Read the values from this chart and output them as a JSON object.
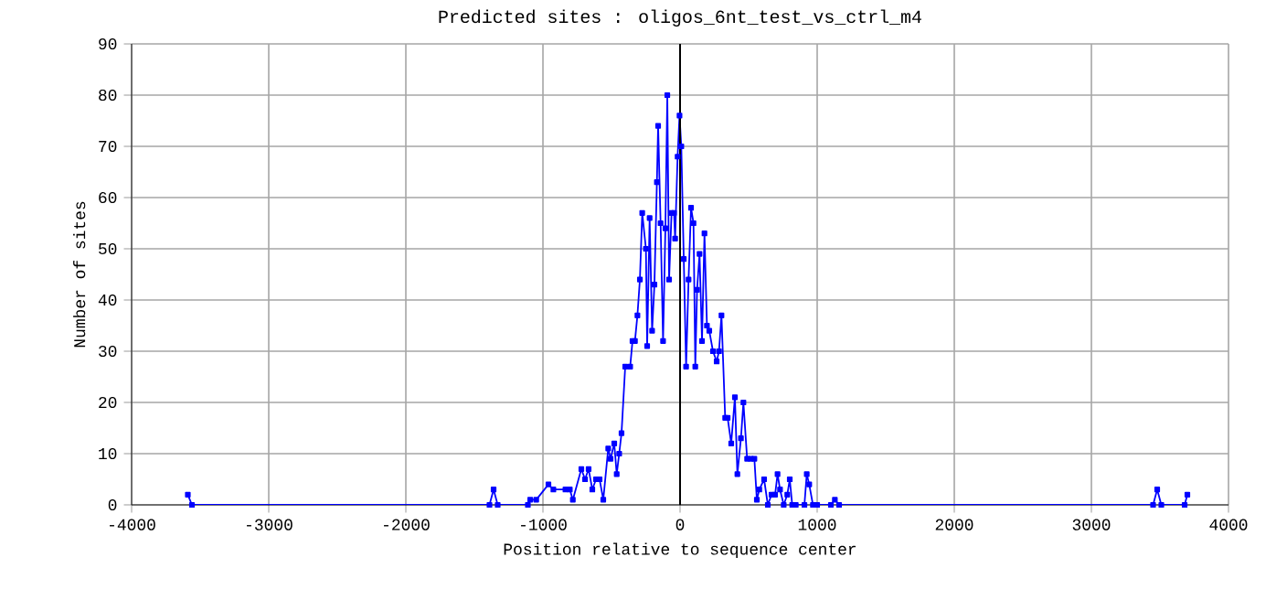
{
  "chart_data": {
    "type": "line",
    "title": "Predicted sites : oligos_6nt_test_vs_ctrl_m4",
    "xlabel": "Position relative to sequence center",
    "ylabel": "Number of sites",
    "x": [
      -3590,
      -3560,
      -1390,
      -1360,
      -1330,
      -1110,
      -1093,
      -1049,
      -960,
      -924,
      -836,
      -804,
      -782,
      -720,
      -693,
      -667,
      -640,
      -613,
      -587,
      -560,
      -524,
      -507,
      -480,
      -462,
      -444,
      -427,
      -400,
      -364,
      -347,
      -329,
      -311,
      -293,
      -276,
      -249,
      -240,
      -222,
      -204,
      -187,
      -169,
      -160,
      -142,
      -124,
      -107,
      -93,
      -80,
      -62,
      -44,
      -36,
      -18,
      -4,
      9,
      27,
      44,
      62,
      80,
      98,
      111,
      124,
      142,
      160,
      178,
      196,
      213,
      240,
      267,
      284,
      302,
      329,
      347,
      373,
      400,
      418,
      444,
      462,
      489,
      516,
      542,
      560,
      578,
      613,
      640,
      667,
      693,
      711,
      729,
      756,
      782,
      800,
      818,
      844,
      907,
      924,
      942,
      969,
      1000,
      1100,
      1129,
      1160,
      3450,
      3480,
      3510,
      3680,
      3700
    ],
    "series": [
      {
        "color": "#0000ff",
        "values": [
          2,
          0,
          0,
          3,
          0,
          0,
          1,
          1,
          4,
          3,
          3,
          3,
          1,
          7,
          5,
          7,
          3,
          5,
          5,
          1,
          11,
          9,
          12,
          6,
          10,
          14,
          27,
          27,
          32,
          32,
          37,
          44,
          57,
          50,
          31,
          56,
          34,
          43,
          63,
          74,
          55,
          32,
          54,
          80,
          44,
          57,
          57,
          52,
          68,
          76,
          70,
          48,
          27,
          44,
          58,
          55,
          27,
          42,
          49,
          32,
          53,
          35,
          34,
          30,
          28,
          30,
          37,
          17,
          17,
          12,
          21,
          6,
          13,
          20,
          9,
          9,
          9,
          1,
          3,
          5,
          0,
          2,
          2,
          6,
          3,
          0,
          2,
          5,
          0,
          0,
          0,
          6,
          4,
          0,
          0,
          0,
          1,
          0,
          0,
          3,
          0,
          0,
          2
        ]
      }
    ],
    "xlim": [
      -4000,
      4000
    ],
    "ylim": [
      0,
      90
    ],
    "xticks": [
      -4000,
      -3000,
      -2000,
      -1000,
      0,
      1000,
      2000,
      3000,
      4000
    ],
    "yticks": [
      0,
      10,
      20,
      30,
      40,
      50,
      60,
      70,
      80,
      90
    ],
    "ref_lines": [
      {
        "axis": "x",
        "value": 0,
        "color": "#000000"
      }
    ],
    "grid": true,
    "marker": "square",
    "line_style": "solid"
  }
}
